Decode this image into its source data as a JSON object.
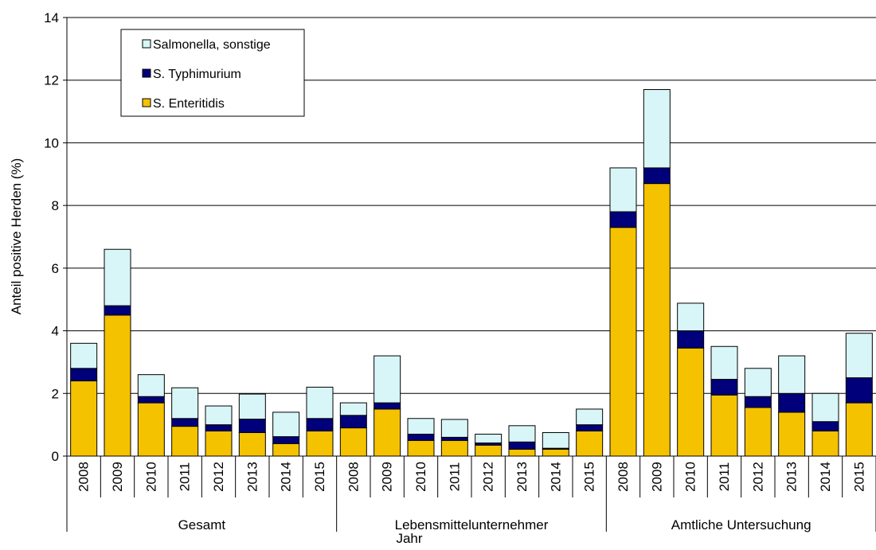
{
  "chart_data": {
    "type": "bar",
    "stacked": true,
    "ylabel": "Anteil positive Herden (%)",
    "xlabel": "Jahr",
    "ylim": [
      0,
      14
    ],
    "yticks": [
      0,
      2,
      4,
      6,
      8,
      10,
      12,
      14
    ],
    "grid": true,
    "legend_position": "top-left",
    "groups": [
      "Gesamt",
      "Lebensmittelunternehmer",
      "Amtliche Untersuchung"
    ],
    "categories": [
      "2008",
      "2009",
      "2010",
      "2011",
      "2012",
      "2013",
      "2014",
      "2015"
    ],
    "series": [
      {
        "name": "S. Enteritidis",
        "color": "#f5c200",
        "values": [
          [
            2.4,
            4.5,
            1.7,
            0.95,
            0.8,
            0.75,
            0.4,
            0.8
          ],
          [
            0.9,
            1.5,
            0.5,
            0.5,
            0.35,
            0.22,
            0.22,
            0.8
          ],
          [
            7.3,
            8.7,
            3.45,
            1.95,
            1.55,
            1.4,
            0.8,
            1.7
          ]
        ]
      },
      {
        "name": "S. Typhimurium",
        "color": "#00007a",
        "values": [
          [
            0.4,
            0.3,
            0.2,
            0.25,
            0.2,
            0.43,
            0.22,
            0.4
          ],
          [
            0.4,
            0.2,
            0.2,
            0.1,
            0.07,
            0.23,
            0.03,
            0.2
          ],
          [
            0.5,
            0.5,
            0.55,
            0.5,
            0.35,
            0.6,
            0.3,
            0.8
          ]
        ]
      },
      {
        "name": "Salmonella, sonstige",
        "color": "#d8f6f8",
        "values": [
          [
            0.8,
            1.8,
            0.7,
            0.98,
            0.6,
            0.8,
            0.78,
            1.0
          ],
          [
            0.4,
            1.5,
            0.5,
            0.57,
            0.28,
            0.52,
            0.5,
            0.5
          ],
          [
            1.4,
            2.5,
            0.88,
            1.05,
            0.9,
            1.2,
            0.9,
            1.42
          ]
        ]
      }
    ],
    "legend_order": [
      "Salmonella, sonstige",
      "S. Typhimurium",
      "S. Enteritidis"
    ]
  }
}
